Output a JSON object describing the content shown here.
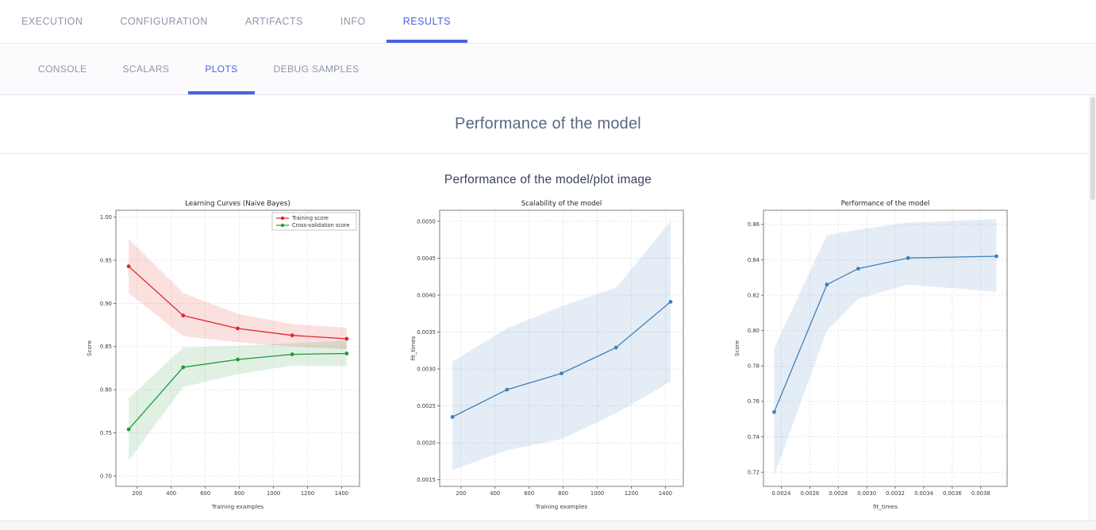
{
  "primary_tabs": {
    "items": [
      {
        "label": "EXECUTION",
        "active": false
      },
      {
        "label": "CONFIGURATION",
        "active": false
      },
      {
        "label": "ARTIFACTS",
        "active": false
      },
      {
        "label": "INFO",
        "active": false
      },
      {
        "label": "RESULTS",
        "active": true
      }
    ]
  },
  "secondary_tabs": {
    "items": [
      {
        "label": "CONSOLE",
        "active": false
      },
      {
        "label": "SCALARS",
        "active": false
      },
      {
        "label": "PLOTS",
        "active": true
      },
      {
        "label": "DEBUG SAMPLES",
        "active": false
      }
    ]
  },
  "header": {
    "title": "Performance of the model"
  },
  "plot": {
    "title": "Performance of the model/plot image"
  },
  "colors": {
    "accent": "#4a62dd",
    "tab_inactive": "#8c96ad",
    "header_text": "#5a6786",
    "training_score": "#e02626",
    "cross_validation_score": "#229939",
    "fit_line": "#3f7fba"
  },
  "chart_data": [
    {
      "type": "line",
      "title": "Learning Curves (Naive Bayes)",
      "xlabel": "Training examples",
      "ylabel": "Score",
      "x": [
        150,
        470,
        790,
        1110,
        1430
      ],
      "xlim": [
        75,
        1505
      ],
      "ylim": [
        0.688,
        1.008
      ],
      "xticks": [
        "200",
        "400",
        "600",
        "800",
        "1000",
        "1200",
        "1400"
      ],
      "yticks": [
        "0.70",
        "0.75",
        "0.80",
        "0.85",
        "0.90",
        "0.95",
        "1.00"
      ],
      "grid": true,
      "legend": {
        "show": true,
        "position": "top-right"
      },
      "series": [
        {
          "name": "Training score",
          "color": "#e02626",
          "values": [
            0.943,
            0.886,
            0.871,
            0.863,
            0.859
          ],
          "band_upper": [
            0.975,
            0.912,
            0.888,
            0.876,
            0.872
          ],
          "band_lower": [
            0.912,
            0.862,
            0.855,
            0.85,
            0.847
          ]
        },
        {
          "name": "Cross-validation score",
          "color": "#229939",
          "values": [
            0.754,
            0.826,
            0.835,
            0.841,
            0.842
          ],
          "band_upper": [
            0.79,
            0.849,
            0.851,
            0.854,
            0.857
          ],
          "band_lower": [
            0.718,
            0.803,
            0.818,
            0.828,
            0.827
          ]
        }
      ]
    },
    {
      "type": "line",
      "title": "Scalability of the model",
      "xlabel": "Training examples",
      "ylabel": "fit_times",
      "x": [
        150,
        470,
        790,
        1110,
        1430
      ],
      "xlim": [
        75,
        1505
      ],
      "ylim": [
        0.00141,
        0.00515
      ],
      "xticks": [
        "200",
        "400",
        "600",
        "800",
        "1000",
        "1200",
        "1400"
      ],
      "yticks": [
        "0.0015",
        "0.0020",
        "0.0025",
        "0.0030",
        "0.0035",
        "0.0040",
        "0.0045",
        "0.0050"
      ],
      "grid": true,
      "legend": {
        "show": false
      },
      "series": [
        {
          "name": "fit_times",
          "color": "#3f7fba",
          "values": [
            0.00235,
            0.00272,
            0.00294,
            0.00329,
            0.00391
          ],
          "band_upper": [
            0.0031,
            0.00355,
            0.00385,
            0.0041,
            0.005
          ],
          "band_lower": [
            0.00163,
            0.0019,
            0.00205,
            0.0024,
            0.00283
          ]
        }
      ]
    },
    {
      "type": "line",
      "title": "Performance of the model",
      "xlabel": "fit_times",
      "ylabel": "Score",
      "x": [
        0.00235,
        0.00272,
        0.00294,
        0.00329,
        0.00391
      ],
      "xlim": [
        0.002275,
        0.003985
      ],
      "ylim": [
        0.712,
        0.868
      ],
      "xticks": [
        "0.0024",
        "0.0026",
        "0.0028",
        "0.0030",
        "0.0032",
        "0.0034",
        "0.0036",
        "0.0038"
      ],
      "yticks": [
        "0.72",
        "0.74",
        "0.76",
        "0.78",
        "0.80",
        "0.82",
        "0.84",
        "0.86"
      ],
      "grid": true,
      "legend": {
        "show": false
      },
      "series": [
        {
          "name": "Score",
          "color": "#3f7fba",
          "values": [
            0.754,
            0.826,
            0.835,
            0.841,
            0.842
          ],
          "band_upper": [
            0.79,
            0.854,
            0.857,
            0.861,
            0.863
          ],
          "band_lower": [
            0.718,
            0.8,
            0.818,
            0.826,
            0.822
          ]
        }
      ]
    }
  ]
}
